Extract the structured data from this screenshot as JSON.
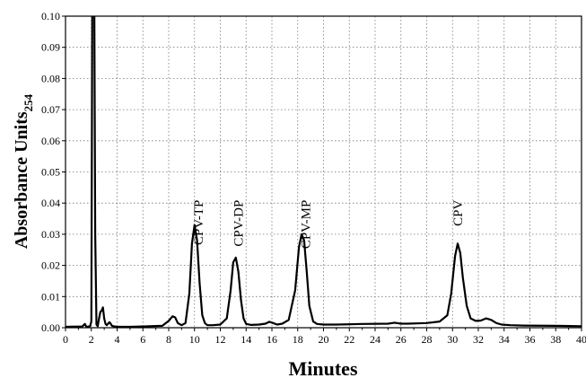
{
  "chart_data": {
    "type": "line",
    "title": "",
    "xlabel": "Minutes",
    "ylabel_main": "Absorbance Units",
    "ylabel_sub": "254",
    "xlim": [
      0,
      40
    ],
    "ylim": [
      0,
      0.1
    ],
    "grid": true,
    "grid_style": "dotted",
    "x_ticks": [
      "0",
      "2",
      "4",
      "6",
      "8",
      "10",
      "12",
      "14",
      "16",
      "18",
      "20",
      "22",
      "24",
      "26",
      "28",
      "30",
      "32",
      "34",
      "36",
      "38",
      "40"
    ],
    "y_ticks": [
      "0.00",
      "0.01",
      "0.02",
      "0.03",
      "0.04",
      "0.05",
      "0.06",
      "0.07",
      "0.08",
      "0.09",
      "0.10"
    ],
    "series": [
      {
        "color": "#000000",
        "x": [
          0,
          1.3,
          1.5,
          1.6,
          1.7,
          1.9,
          2.0,
          2.1,
          2.2,
          2.3,
          2.4,
          2.5,
          2.6,
          2.7,
          2.8,
          2.9,
          3.0,
          3.1,
          3.2,
          3.4,
          3.5,
          3.6,
          3.8,
          4.0,
          5.0,
          6.0,
          7.5,
          8.0,
          8.3,
          8.5,
          8.7,
          9.0,
          9.3,
          9.6,
          9.8,
          10.0,
          10.2,
          10.4,
          10.6,
          10.8,
          11.0,
          11.4,
          12.0,
          12.5,
          12.8,
          13.0,
          13.2,
          13.4,
          13.6,
          13.8,
          14.0,
          14.4,
          15.0,
          15.5,
          15.8,
          16.1,
          16.4,
          16.8,
          17.3,
          17.8,
          18.1,
          18.3,
          18.5,
          18.7,
          18.9,
          19.2,
          19.5,
          20.0,
          21.0,
          23.0,
          25.0,
          25.5,
          26.0,
          26.5,
          28.0,
          29.0,
          29.6,
          29.9,
          30.2,
          30.4,
          30.6,
          30.8,
          31.1,
          31.4,
          31.8,
          32.2,
          32.6,
          33.0,
          33.4,
          33.8,
          34.5,
          35.5,
          38.0,
          40.0
        ],
        "y": [
          0.0003,
          0.0004,
          0.0012,
          0.0004,
          0.0003,
          0.0005,
          0.002,
          0.14,
          0.14,
          0.03,
          0.001,
          0.0005,
          0.003,
          0.005,
          0.0055,
          0.0065,
          0.003,
          0.0012,
          0.0008,
          0.0018,
          0.0013,
          0.0006,
          0.0004,
          0.0003,
          0.0003,
          0.0004,
          0.0006,
          0.0022,
          0.0037,
          0.0033,
          0.0015,
          0.0008,
          0.0015,
          0.011,
          0.027,
          0.033,
          0.028,
          0.014,
          0.004,
          0.0015,
          0.0008,
          0.0008,
          0.001,
          0.003,
          0.012,
          0.021,
          0.0225,
          0.018,
          0.009,
          0.003,
          0.0012,
          0.0009,
          0.001,
          0.0013,
          0.0019,
          0.0015,
          0.001,
          0.0013,
          0.0025,
          0.012,
          0.026,
          0.03,
          0.028,
          0.018,
          0.007,
          0.002,
          0.0012,
          0.001,
          0.001,
          0.0012,
          0.0013,
          0.0016,
          0.0013,
          0.0013,
          0.0015,
          0.002,
          0.004,
          0.011,
          0.023,
          0.027,
          0.024,
          0.016,
          0.007,
          0.003,
          0.0022,
          0.0023,
          0.003,
          0.0025,
          0.0015,
          0.001,
          0.0008,
          0.0007,
          0.0006,
          0.0005
        ]
      }
    ],
    "annotations": [
      {
        "text": "CPV-TP",
        "x": 10.3,
        "y": 0.041
      },
      {
        "text": "CPV-DP",
        "x": 13.4,
        "y": 0.041
      },
      {
        "text": "CPV-MP",
        "x": 18.6,
        "y": 0.041
      },
      {
        "text": "CPV",
        "x": 30.4,
        "y": 0.041
      }
    ]
  }
}
